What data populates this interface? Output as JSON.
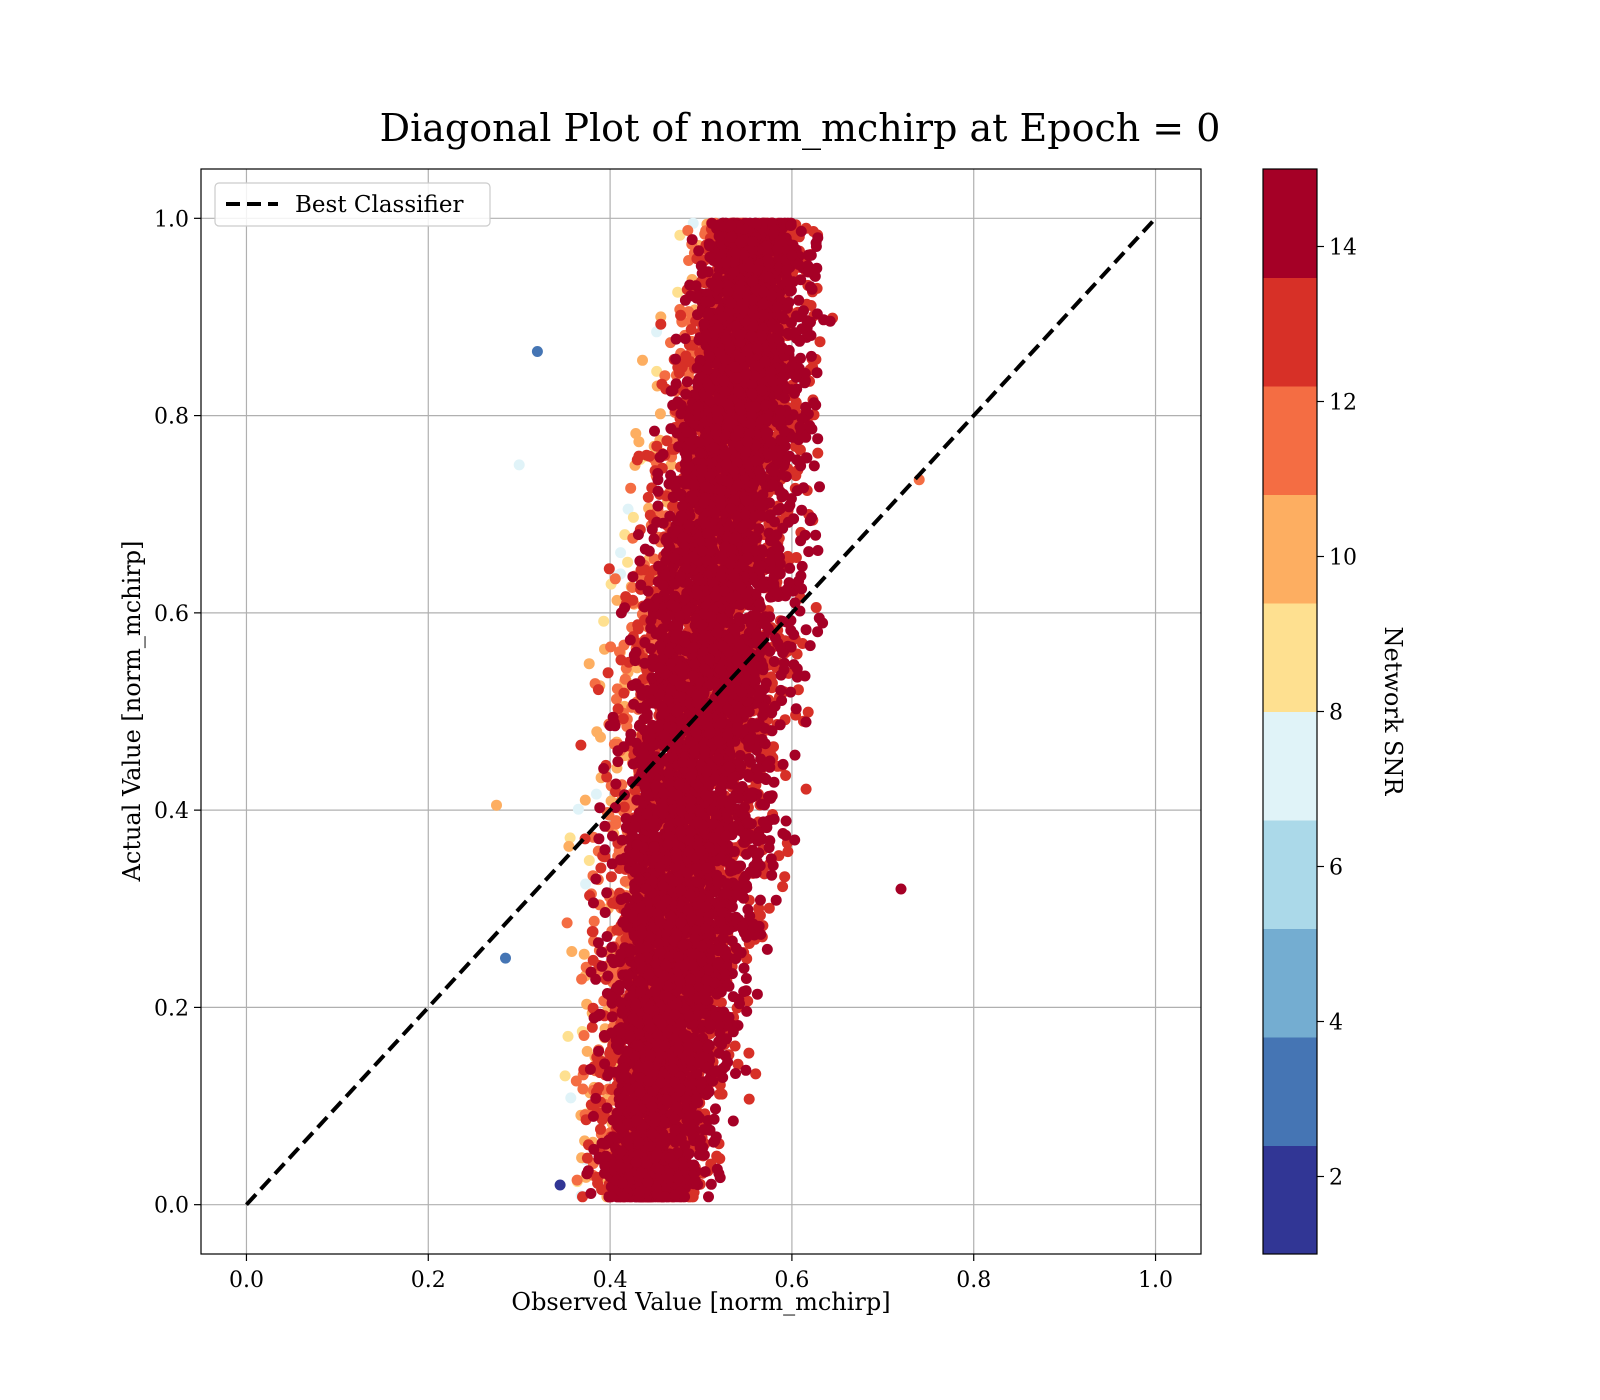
{
  "chart_data": {
    "type": "scatter",
    "title": "Diagonal Plot of norm_mchirp at Epoch = 0",
    "xlabel": "Observed Value [norm_mchirp]",
    "ylabel": "Actual Value [norm_mchirp]",
    "xlim": [
      -0.05,
      1.05
    ],
    "ylim": [
      -0.05,
      1.05
    ],
    "xticks": [
      "0.0",
      "0.2",
      "0.4",
      "0.6",
      "0.8",
      "1.0"
    ],
    "yticks": [
      "0.0",
      "0.2",
      "0.4",
      "0.6",
      "0.8",
      "1.0"
    ],
    "grid": true,
    "legend": {
      "placement": "top-left",
      "entries": [
        {
          "label": "Best Classifier",
          "style": "black dashed line"
        }
      ]
    },
    "reference_line": {
      "name": "Best Classifier",
      "x": [
        0.0,
        1.0
      ],
      "y": [
        0.0,
        1.0
      ],
      "color": "#000000",
      "dash": true
    },
    "colorbar": {
      "label": "Network SNR",
      "range": [
        1,
        15
      ],
      "ticks": [
        "2",
        "4",
        "6",
        "8",
        "10",
        "12",
        "14"
      ],
      "tick_values": [
        2,
        4,
        6,
        8,
        10,
        12,
        14
      ],
      "colors": [
        "#313695",
        "#4575b4",
        "#74add1",
        "#abd9e9",
        "#e0f3f8",
        "#fee090",
        "#fdae61",
        "#f46d43",
        "#d73027",
        "#a50026"
      ]
    },
    "point_cloud": {
      "color_by": "Network SNR",
      "description_values": {
        "observed_range": [
          0.27,
          0.745
        ],
        "actual_range": [
          0.0,
          1.0
        ],
        "core_center_observed_at_actual_0": 0.44,
        "core_center_observed_at_actual_1": 0.56,
        "notes_points": [
          {
            "x": 0.275,
            "y": 0.405,
            "snr": 10
          },
          {
            "x": 0.74,
            "y": 0.735,
            "snr": 12
          },
          {
            "x": 0.72,
            "y": 0.32,
            "snr": 14
          },
          {
            "x": 0.285,
            "y": 0.25,
            "snr": 3
          },
          {
            "x": 0.3,
            "y": 0.75,
            "snr": 7
          },
          {
            "x": 0.32,
            "y": 0.865,
            "snr": 3
          },
          {
            "x": 0.345,
            "y": 0.02,
            "snr": 2
          }
        ]
      }
    }
  }
}
